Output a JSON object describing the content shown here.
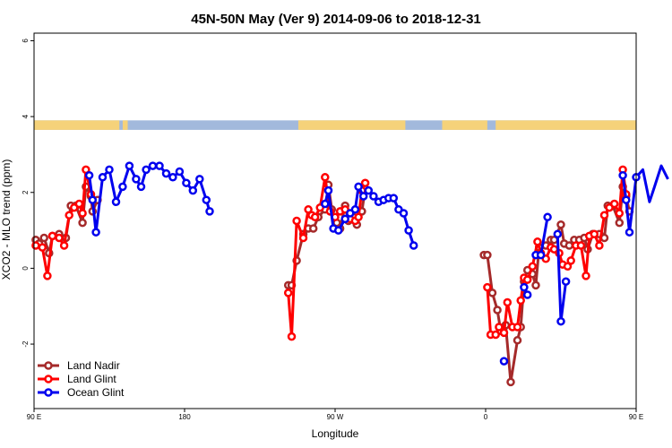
{
  "chart_data": {
    "type": "line",
    "title": "45N-50N May (Ver 9)   2014-09-06 to 2018-12-31",
    "xlabel": "Longitude",
    "ylabel": "XCO2 - MLO trend (ppm)",
    "xlim": [
      90,
      450
    ],
    "ylim": [
      -3.7,
      6.2
    ],
    "x_ticks": [
      {
        "value": 90,
        "label": "90 E"
      },
      {
        "value": 180,
        "label": "180"
      },
      {
        "value": 270,
        "label": "90 W"
      },
      {
        "value": 360,
        "label": "0"
      },
      {
        "value": 450,
        "label": "90 E"
      },
      {
        "value": 540,
        "label": "180"
      }
    ],
    "y_ticks": [
      {
        "value": -2,
        "label": "-2"
      },
      {
        "value": 0,
        "label": "0"
      },
      {
        "value": 2,
        "label": "2"
      },
      {
        "value": 4,
        "label": "4"
      },
      {
        "value": 6,
        "label": "6"
      }
    ],
    "grid": false,
    "legend_position": "bottom-left",
    "land_ocean_strip": {
      "y_range": [
        3.65,
        3.9
      ],
      "land_color": "#f5d27a",
      "ocean_color": "#a2b9dc",
      "land_segments": [
        [
          90,
          141
        ],
        [
          143,
          146
        ],
        [
          248,
          312
        ],
        [
          334,
          361
        ],
        [
          366,
          450
        ],
        [
          452,
          455
        ],
        [
          502,
          512
        ]
      ]
    },
    "series": [
      {
        "name": "Land Nadir",
        "color": "#a52a2a",
        "segments": [
          [
            [
              91,
              0.75
            ],
            [
              93,
              0.65
            ],
            [
              96,
              0.8
            ],
            [
              99,
              0.4
            ],
            [
              101,
              0.85
            ],
            [
              105,
              0.9
            ],
            [
              109,
              0.8
            ],
            [
              112,
              1.65
            ],
            [
              115,
              1.65
            ],
            [
              119,
              1.2
            ],
            [
              121,
              2.15
            ],
            [
              124,
              1.9
            ],
            [
              125,
              1.5
            ],
            [
              128,
              1.8
            ]
          ],
          [
            [
              242,
              -0.45
            ],
            [
              244,
              -0.45
            ],
            [
              247,
              0.2
            ],
            [
              251,
              0.9
            ],
            [
              254,
              1.05
            ],
            [
              257,
              1.05
            ],
            [
              260,
              1.35
            ],
            [
              264,
              1.55
            ],
            [
              266,
              2.2
            ],
            [
              268,
              1.55
            ],
            [
              271,
              1.2
            ],
            [
              273,
              1.05
            ],
            [
              276,
              1.65
            ],
            [
              278,
              1.25
            ],
            [
              281,
              1.35
            ],
            [
              283,
              1.15
            ],
            [
              286,
              1.5
            ],
            [
              288,
              2.1
            ]
          ],
          [
            [
              359,
              0.35
            ],
            [
              361,
              0.35
            ],
            [
              364,
              -0.65
            ],
            [
              367,
              -1.1
            ],
            [
              369,
              -1.65
            ],
            [
              372,
              -1.5
            ],
            [
              375,
              -3.0
            ],
            [
              379,
              -1.9
            ],
            [
              381,
              -1.55
            ],
            [
              383,
              -0.35
            ],
            [
              385,
              -0.05
            ],
            [
              388,
              -0.15
            ],
            [
              390,
              -0.45
            ],
            [
              392,
              0.55
            ],
            [
              396,
              0.6
            ],
            [
              399,
              0.75
            ],
            [
              401,
              0.75
            ],
            [
              405,
              1.15
            ],
            [
              407,
              0.65
            ],
            [
              410,
              0.6
            ],
            [
              413,
              0.75
            ],
            [
              416,
              0.75
            ],
            [
              419,
              0.8
            ],
            [
              421,
              0.5
            ],
            [
              424,
              0.9
            ],
            [
              428,
              0.9
            ],
            [
              431,
              0.8
            ],
            [
              433,
              1.65
            ],
            [
              436,
              1.65
            ],
            [
              440,
              1.2
            ],
            [
              442,
              2.15
            ],
            [
              444,
              1.9
            ],
            [
              446,
              1.5
            ]
          ]
        ]
      },
      {
        "name": "Land Glint",
        "color": "#ff0000",
        "segments": [
          [
            [
              91,
              0.6
            ],
            [
              95,
              0.55
            ],
            [
              98,
              -0.2
            ],
            [
              101,
              0.85
            ],
            [
              105,
              0.8
            ],
            [
              108,
              0.6
            ],
            [
              111,
              1.4
            ],
            [
              114,
              1.6
            ],
            [
              117,
              1.7
            ],
            [
              119,
              1.45
            ],
            [
              121,
              2.6
            ],
            [
              124,
              1.95
            ]
          ],
          [
            [
              242,
              -0.65
            ],
            [
              244,
              -1.8
            ],
            [
              247,
              1.25
            ],
            [
              251,
              0.8
            ],
            [
              254,
              1.55
            ],
            [
              256,
              1.4
            ],
            [
              258,
              1.35
            ],
            [
              261,
              1.6
            ],
            [
              264,
              2.4
            ],
            [
              267,
              1.5
            ],
            [
              270,
              1.35
            ],
            [
              273,
              1.5
            ],
            [
              276,
              1.55
            ],
            [
              279,
              1.3
            ],
            [
              282,
              1.25
            ],
            [
              284,
              1.35
            ],
            [
              286,
              2.05
            ],
            [
              288,
              2.25
            ]
          ],
          [
            [
              361,
              -0.5
            ],
            [
              363,
              -1.75
            ],
            [
              366,
              -1.75
            ],
            [
              368,
              -1.55
            ],
            [
              371,
              -1.7
            ],
            [
              373,
              -0.9
            ],
            [
              376,
              -1.55
            ],
            [
              379,
              -1.55
            ],
            [
              381,
              -0.85
            ],
            [
              383,
              -0.25
            ],
            [
              385,
              -0.3
            ],
            [
              388,
              0.05
            ],
            [
              391,
              0.7
            ],
            [
              393,
              0.4
            ],
            [
              396,
              0.25
            ],
            [
              399,
              0.55
            ],
            [
              401,
              0.5
            ],
            [
              404,
              0.4
            ],
            [
              406,
              0.1
            ],
            [
              409,
              0.05
            ],
            [
              411,
              0.2
            ],
            [
              414,
              0.6
            ],
            [
              417,
              0.6
            ],
            [
              420,
              -0.2
            ],
            [
              422,
              0.85
            ],
            [
              425,
              0.9
            ],
            [
              428,
              0.6
            ],
            [
              431,
              1.4
            ],
            [
              434,
              1.6
            ],
            [
              437,
              1.7
            ],
            [
              440,
              1.45
            ],
            [
              442,
              2.6
            ],
            [
              444,
              1.95
            ]
          ]
        ]
      },
      {
        "name": "Ocean Glint",
        "color": "#0000ee",
        "segments": [
          [
            [
              123,
              2.45
            ],
            [
              125,
              1.8
            ],
            [
              127,
              0.95
            ],
            [
              131,
              2.4
            ],
            [
              135,
              2.6
            ],
            [
              139,
              1.75
            ],
            [
              143,
              2.15
            ],
            [
              147,
              2.7
            ],
            [
              151,
              2.35
            ],
            [
              154,
              2.15
            ],
            [
              157,
              2.6
            ],
            [
              161,
              2.7
            ],
            [
              165,
              2.7
            ],
            [
              169,
              2.5
            ],
            [
              173,
              2.4
            ],
            [
              177,
              2.55
            ],
            [
              181,
              2.25
            ],
            [
              185,
              2.05
            ],
            [
              189,
              2.35
            ],
            [
              193,
              1.8
            ],
            [
              195,
              1.5
            ]
          ],
          [
            [
              264,
              1.7
            ],
            [
              266,
              2.05
            ],
            [
              269,
              1.05
            ],
            [
              272,
              1.0
            ],
            [
              276,
              1.3
            ],
            [
              279,
              1.45
            ],
            [
              282,
              1.55
            ],
            [
              284,
              2.15
            ],
            [
              287,
              1.9
            ],
            [
              290,
              2.05
            ],
            [
              293,
              1.9
            ],
            [
              296,
              1.75
            ],
            [
              299,
              1.8
            ],
            [
              302,
              1.85
            ],
            [
              305,
              1.85
            ],
            [
              308,
              1.55
            ],
            [
              311,
              1.45
            ],
            [
              314,
              1.0
            ],
            [
              317,
              0.6
            ]
          ],
          [
            [
              371,
              -2.45
            ]
          ],
          [
            [
              383,
              -0.5
            ],
            [
              385,
              -0.7
            ]
          ],
          [
            [
              390,
              0.35
            ],
            [
              393,
              0.35
            ],
            [
              397,
              1.35
            ]
          ],
          [
            [
              403,
              0.9
            ],
            [
              405,
              -1.4
            ],
            [
              408,
              -0.35
            ]
          ],
          [
            [
              442,
              2.45
            ],
            [
              444,
              1.8
            ],
            [
              446,
              0.95
            ],
            [
              450,
              2.4
            ],
            [
              454,
              2.6
            ],
            [
              458,
              1.75
            ],
            [
              461,
              2.15
            ],
            [
              465,
              2.7
            ],
            [
              469,
              2.35
            ]
          ]
        ]
      }
    ]
  }
}
